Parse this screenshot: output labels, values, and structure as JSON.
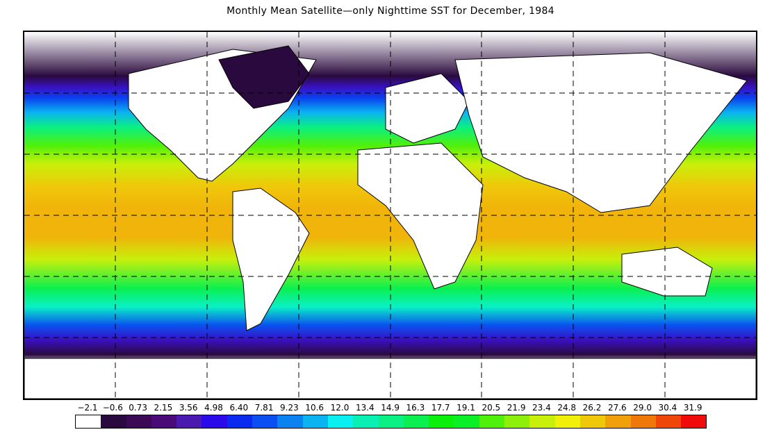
{
  "title": "Monthly Mean Satellite—only Nighttime SST for December, 1984",
  "colorbar": {
    "ticks": [
      "−2.1",
      "−0.6",
      "0.73",
      "2.15",
      "3.56",
      "4.98",
      "6.40",
      "7.81",
      "9.23",
      "10.6",
      "12.0",
      "13.4",
      "14.9",
      "16.3",
      "17.7",
      "19.1",
      "20.5",
      "21.9",
      "23.4",
      "24.8",
      "26.2",
      "27.6",
      "29.0",
      "30.4",
      "31.9"
    ],
    "colors": [
      "#ffffff",
      "#2a0a3e",
      "#3c0a55",
      "#4a0a78",
      "#4a1ab0",
      "#2a0ae8",
      "#0a2af0",
      "#0a50f0",
      "#0a82f0",
      "#0ab4f0",
      "#0af0f0",
      "#0af0b4",
      "#0af082",
      "#0af050",
      "#0af00a",
      "#0af028",
      "#50f00a",
      "#8cf00a",
      "#c8f00a",
      "#f0f00a",
      "#f0c80a",
      "#f0a00a",
      "#f0780a",
      "#f0460a",
      "#f00a0a"
    ]
  },
  "map": {
    "projection": "equirectangular",
    "lon_range": [
      -180,
      180
    ],
    "lat_range": [
      -90,
      90
    ],
    "grid": true,
    "grid_lon_step": 45,
    "grid_lat_step": 30,
    "month": "December",
    "year": "1984",
    "variable": "SST"
  }
}
